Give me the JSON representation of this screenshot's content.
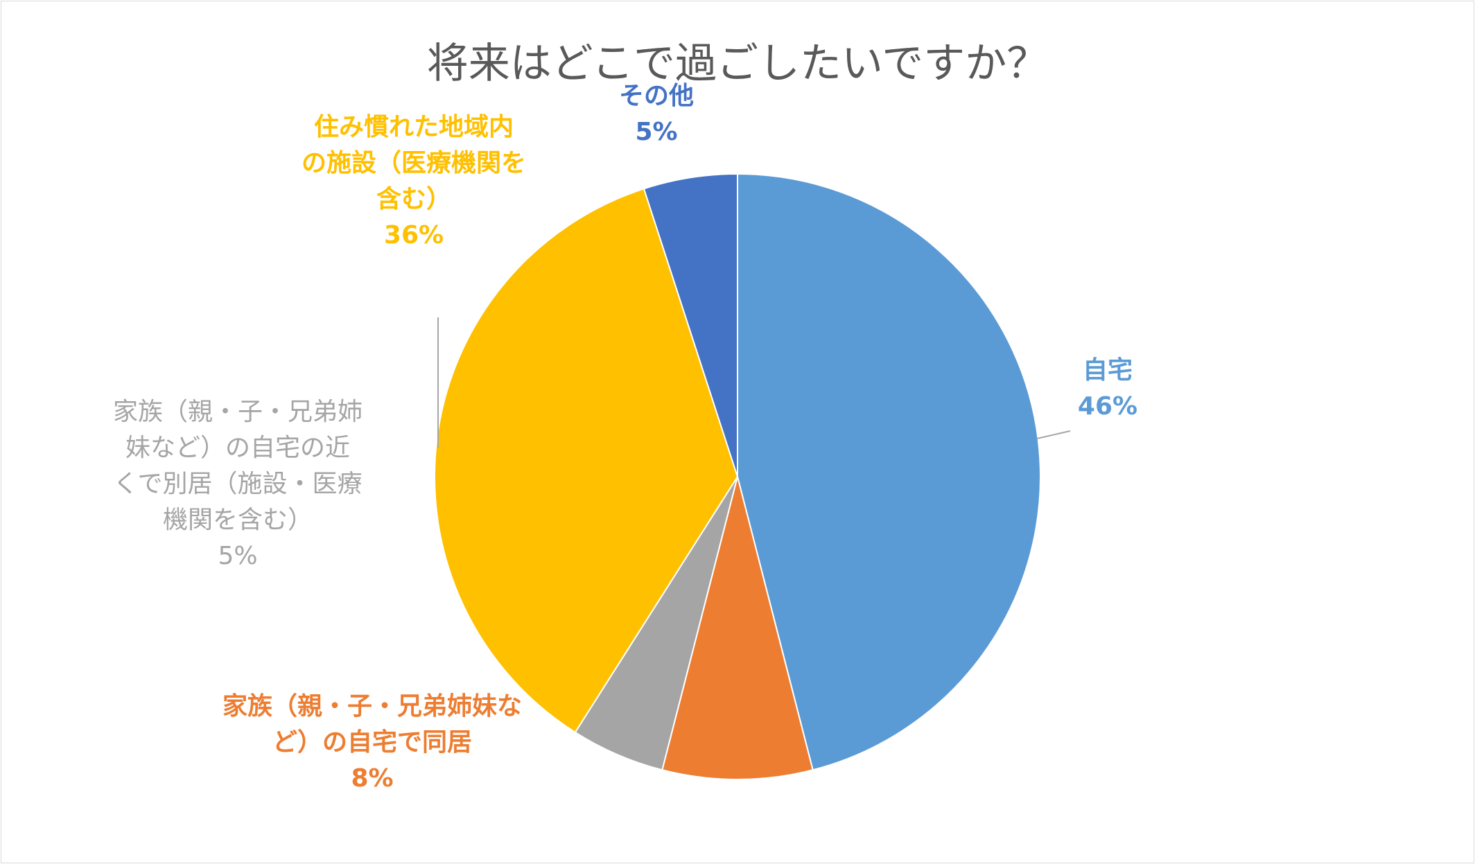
{
  "chart_data": {
    "type": "pie",
    "title": "将来はどこで過ごしたいですか？",
    "start_angle_deg": 0,
    "direction": "clockwise",
    "slices": [
      {
        "label": "自宅",
        "label_lines": [
          "自宅"
        ],
        "value": 46,
        "percent_text": "46%",
        "color": "#5b9bd5",
        "label_color": "#5b9bd5"
      },
      {
        "label": "家族（親・子・兄弟姉妹など）の自宅で同居",
        "label_lines": [
          "家族（親・子・兄弟姉妹な",
          "ど）の自宅で同居"
        ],
        "value": 8,
        "percent_text": "8%",
        "color": "#ed7d31",
        "label_color": "#ed7d31"
      },
      {
        "label": "家族（親・子・兄弟姉妹など）の自宅の近くで別居（施設・医療機関を含む）",
        "label_lines": [
          "家族（親・子・兄弟姉",
          "妹など）の自宅の近",
          "くで別居（施設・医療",
          "機関を含む）"
        ],
        "value": 5,
        "percent_text": "5%",
        "color": "#a5a5a5",
        "label_color": "#a5a5a5"
      },
      {
        "label": "住み慣れた地域内の施設（医療機関を含む）",
        "label_lines": [
          "住み慣れた地域内",
          "の施設（医療機関を",
          "含む）"
        ],
        "value": 36,
        "percent_text": "36%",
        "color": "#ffc000",
        "label_color": "#ffc000"
      },
      {
        "label": "その他",
        "label_lines": [
          "その他"
        ],
        "value": 5,
        "percent_text": "5%",
        "color": "#4472c4",
        "label_color": "#4472c4"
      }
    ],
    "legend": "none",
    "leader_line_color": "#a6a6a6",
    "slice_border_color": "#ffffff"
  }
}
